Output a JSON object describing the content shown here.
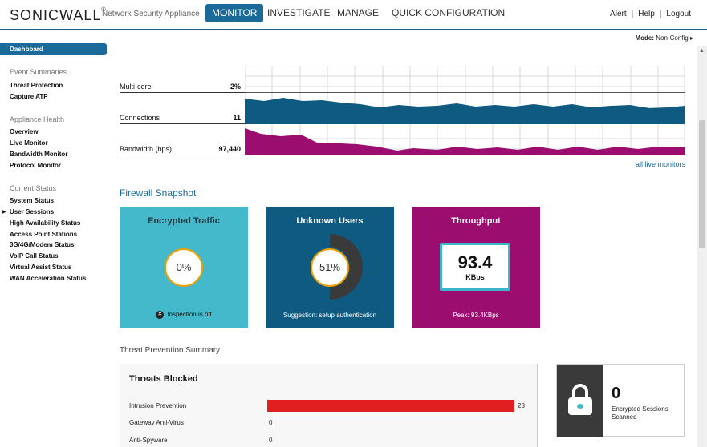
{
  "header": {
    "logo": "SONICWALL",
    "product": "Network Security Appliance",
    "tabs": [
      {
        "label": "MONITOR",
        "active": true
      },
      {
        "label": "INVESTIGATE",
        "active": false
      },
      {
        "label": "MANAGE",
        "active": false
      },
      {
        "label": "QUICK CONFIGURATION",
        "active": false
      }
    ],
    "links": [
      "Alert",
      "Help",
      "Logout"
    ]
  },
  "mode": {
    "label": "Mode:",
    "value": "Non-Config"
  },
  "sidebar": {
    "dashboard": "Dashboard",
    "groups": [
      {
        "title": "Event Summaries",
        "items": [
          "Threat Protection",
          "Capture ATP"
        ]
      },
      {
        "title": "Appliance Health",
        "items": [
          "Overview",
          "Live Monitor",
          "Bandwidth Monitor",
          "Protocol Monitor"
        ]
      },
      {
        "title": "Current Status",
        "items": [
          "System Status",
          "User Sessions",
          "High Availability Status",
          "Access Point Stations",
          "3G/4G/Modem Status",
          "VoIP Call Status",
          "Virtual Assist Status",
          "WAN Acceleration Status"
        ]
      }
    ]
  },
  "monitors": {
    "rows": [
      {
        "label": "Multi-core",
        "value": "2%"
      },
      {
        "label": "Connections",
        "value": "11"
      },
      {
        "label": "Bandwidth (bps)",
        "value": "97,440"
      }
    ],
    "all_link": "all live monitors"
  },
  "snapshot": {
    "title": "Firewall Snapshot",
    "encrypted": {
      "title": "Encrypted Traffic",
      "value": "0%",
      "foot": "Inspection is off",
      "color": "#45b9cc"
    },
    "unknown": {
      "title": "Unknown Users",
      "value": "51%",
      "foot": "Suggestion: setup authentication",
      "color": "#0f5a80"
    },
    "throughput": {
      "title": "Throughput",
      "value": "93.4",
      "unit": "KBps",
      "foot": "Peak: 93.4KBps",
      "color": "#9b0d6e"
    }
  },
  "threats": {
    "summary_title": "Threat Prevention Summary",
    "panel_title": "Threats Blocked",
    "rows": [
      {
        "label": "Intrusion Prevention",
        "value": "28",
        "fraction": 1.0
      },
      {
        "label": "Gateway Anti-Virus",
        "value": "0",
        "fraction": 0
      },
      {
        "label": "Anti-Spyware",
        "value": "0",
        "fraction": 0
      }
    ]
  },
  "encrypted_sessions": {
    "value": "0",
    "label": "Encrypted Sessions Scanned"
  }
}
